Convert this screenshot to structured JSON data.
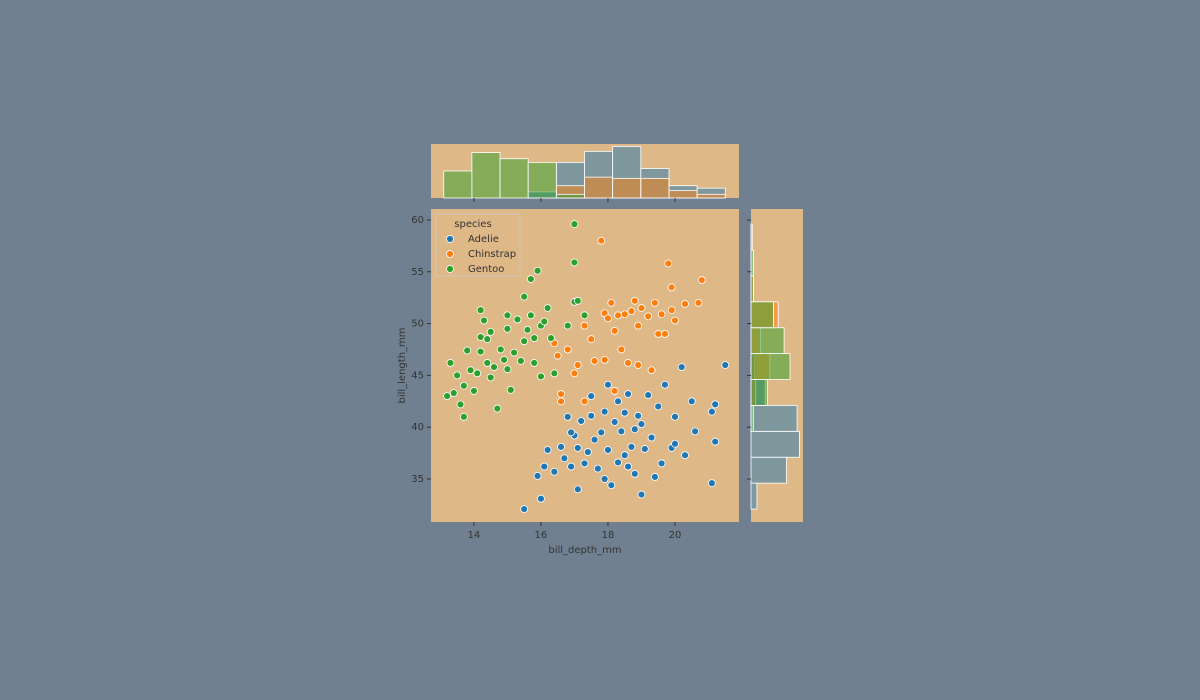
{
  "chart_data": [
    {
      "type": "scatter",
      "xlabel": "bill_depth_mm",
      "ylabel": "bill_length_mm",
      "xlim": [
        12.72,
        21.91
      ],
      "ylim": [
        30.85,
        61.06
      ],
      "xticks": [
        14,
        16,
        18,
        20
      ],
      "yticks": [
        35,
        40,
        45,
        50,
        55,
        60
      ],
      "legend_title": "species",
      "legend": "upper left",
      "background": "#deb887",
      "series": [
        {
          "name": "Adelie",
          "color": "#1f77b4",
          "x": [
            15.5,
            15.9,
            16.0,
            16.1,
            16.2,
            16.4,
            16.6,
            16.7,
            16.8,
            16.9,
            17.0,
            17.1,
            17.1,
            17.2,
            17.3,
            17.4,
            17.5,
            17.5,
            17.6,
            17.7,
            17.8,
            17.9,
            17.9,
            18.0,
            18.0,
            18.1,
            18.2,
            18.3,
            18.3,
            18.4,
            18.5,
            18.5,
            18.6,
            18.7,
            18.8,
            18.8,
            18.9,
            19.0,
            19.0,
            19.1,
            19.2,
            19.3,
            19.4,
            19.5,
            19.6,
            19.7,
            19.9,
            20.0,
            20.2,
            20.3,
            20.5,
            20.6,
            21.1,
            21.1,
            21.2,
            21.2,
            21.5,
            20.0,
            16.9,
            18.6
          ],
          "y": [
            32.1,
            35.3,
            33.1,
            36.2,
            37.8,
            35.7,
            38.1,
            37.0,
            41.0,
            36.2,
            39.2,
            38.0,
            34.0,
            40.6,
            36.5,
            37.6,
            41.1,
            43.0,
            38.8,
            36.0,
            39.5,
            35.0,
            41.5,
            44.1,
            37.8,
            34.4,
            40.5,
            42.5,
            36.6,
            39.6,
            41.4,
            37.3,
            43.2,
            38.1,
            39.8,
            35.5,
            41.1,
            33.5,
            40.3,
            37.9,
            43.1,
            39.0,
            35.2,
            42.0,
            36.5,
            44.1,
            38.0,
            41.0,
            45.8,
            37.3,
            42.5,
            39.6,
            41.5,
            34.6,
            42.2,
            38.6,
            46.0,
            38.4,
            39.5,
            36.2
          ]
        },
        {
          "name": "Chinstrap",
          "color": "#ff7f0e",
          "x": [
            16.4,
            16.5,
            16.6,
            16.6,
            16.8,
            17.0,
            17.1,
            17.3,
            17.3,
            17.5,
            17.6,
            17.8,
            17.9,
            17.9,
            18.0,
            18.1,
            18.2,
            18.3,
            18.4,
            18.5,
            18.6,
            18.7,
            18.8,
            18.9,
            18.9,
            19.0,
            19.2,
            19.3,
            19.4,
            19.5,
            19.6,
            19.8,
            19.9,
            19.9,
            20.0,
            20.3,
            20.7,
            20.8,
            19.7,
            18.2
          ],
          "y": [
            48.1,
            46.9,
            43.2,
            42.5,
            47.5,
            45.2,
            46.0,
            49.8,
            42.5,
            48.5,
            46.4,
            58.0,
            51.0,
            46.5,
            50.5,
            52.0,
            43.5,
            50.8,
            47.5,
            50.9,
            46.2,
            51.2,
            52.2,
            46.0,
            49.8,
            51.5,
            50.7,
            45.5,
            52.0,
            49.0,
            50.9,
            55.8,
            53.5,
            51.3,
            50.3,
            51.9,
            52.0,
            54.2,
            49.0,
            49.3
          ]
        },
        {
          "name": "Gentoo",
          "color": "#2ca02c",
          "x": [
            13.2,
            13.3,
            13.5,
            13.4,
            13.6,
            13.7,
            13.7,
            13.8,
            13.9,
            14.0,
            14.1,
            14.2,
            14.2,
            14.3,
            14.4,
            14.4,
            14.5,
            14.5,
            14.6,
            14.7,
            14.8,
            14.9,
            15.0,
            15.0,
            15.0,
            15.1,
            15.2,
            15.3,
            15.4,
            15.5,
            15.5,
            15.6,
            15.7,
            15.7,
            15.8,
            15.9,
            16.0,
            16.1,
            16.2,
            16.3,
            16.4,
            16.8,
            17.0,
            17.0,
            17.0,
            17.3,
            17.1,
            15.8,
            16.0,
            14.2
          ],
          "y": [
            43.0,
            46.2,
            45.0,
            43.3,
            42.2,
            41.0,
            44.0,
            47.4,
            45.5,
            43.5,
            45.2,
            51.3,
            48.7,
            50.3,
            48.5,
            46.2,
            44.8,
            49.2,
            45.8,
            41.8,
            47.5,
            46.5,
            49.5,
            50.8,
            45.6,
            43.6,
            47.2,
            50.4,
            46.4,
            48.3,
            52.6,
            49.4,
            54.3,
            50.8,
            48.6,
            55.1,
            49.8,
            50.2,
            51.5,
            48.6,
            45.2,
            49.8,
            52.1,
            55.9,
            59.6,
            50.8,
            52.2,
            46.2,
            44.9,
            47.3
          ]
        }
      ]
    },
    {
      "type": "histogram",
      "orientation": "vertical",
      "background": "#deb887",
      "bins": [
        13.1,
        13.94,
        14.78,
        15.62,
        16.46,
        17.3,
        18.14,
        18.98,
        19.82,
        20.66,
        21.5
      ],
      "xlim": [
        12.72,
        21.91
      ],
      "ylim": [
        0,
        44
      ],
      "xticks": [
        14,
        16,
        18,
        20
      ],
      "series": [
        {
          "color": "#1f77b4",
          "counts": [
            0,
            0,
            0,
            5,
            29,
            38,
            42,
            24,
            10,
            8
          ]
        },
        {
          "color": "#ff7f0e",
          "counts": [
            0,
            0,
            0,
            0,
            10,
            17,
            16,
            16,
            6,
            3
          ]
        },
        {
          "color": "#2ca02c",
          "counts": [
            22,
            37,
            32,
            29,
            3,
            0,
            0,
            0,
            0,
            0
          ]
        }
      ]
    },
    {
      "type": "histogram",
      "orientation": "horizontal",
      "background": "#deb887",
      "bins": [
        32.1,
        34.6,
        37.1,
        39.6,
        42.1,
        44.6,
        47.1,
        49.6,
        52.1,
        54.6,
        57.1,
        59.6
      ],
      "ylim": [
        30.85,
        61.06
      ],
      "xlim": [
        0,
        44
      ],
      "yticks": [
        35,
        40,
        45,
        50,
        55,
        60
      ],
      "series": [
        {
          "color": "#1f77b4",
          "counts": [
            5,
            30,
            41,
            39,
            12,
            3,
            0,
            0,
            0,
            0,
            0
          ]
        },
        {
          "color": "#ff7f0e",
          "counts": [
            0,
            0,
            0,
            1,
            4,
            16,
            8,
            23,
            2,
            1,
            1
          ]
        },
        {
          "color": "#2ca02c",
          "counts": [
            0,
            0,
            0,
            2,
            14,
            33,
            28,
            19,
            2,
            2,
            1
          ]
        }
      ]
    }
  ]
}
